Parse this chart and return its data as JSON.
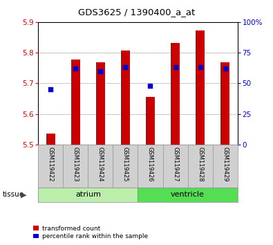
{
  "title": "GDS3625 / 1390400_a_at",
  "samples": [
    "GSM119422",
    "GSM119423",
    "GSM119424",
    "GSM119425",
    "GSM119426",
    "GSM119427",
    "GSM119428",
    "GSM119429"
  ],
  "bar_tops": [
    5.535,
    5.778,
    5.768,
    5.808,
    5.655,
    5.832,
    5.872,
    5.768
  ],
  "bar_bottom": 5.5,
  "percentile_ranks": [
    45,
    62,
    60,
    63,
    48,
    63,
    63,
    62
  ],
  "ylim_left": [
    5.5,
    5.9
  ],
  "ylim_right": [
    0,
    100
  ],
  "yticks_left": [
    5.5,
    5.6,
    5.7,
    5.8,
    5.9
  ],
  "yticks_right": [
    0,
    25,
    50,
    75,
    100
  ],
  "ytick_labels_right": [
    "0",
    "25",
    "50",
    "75",
    "100%"
  ],
  "bar_color": "#cc0000",
  "dot_color": "#0000cc",
  "grid_color": "#000000",
  "tissue_groups": [
    {
      "label": "atrium",
      "samples": [
        0,
        1,
        2,
        3
      ],
      "color": "#bbeeaa"
    },
    {
      "label": "ventricle",
      "samples": [
        4,
        5,
        6,
        7
      ],
      "color": "#55dd55"
    }
  ],
  "tissue_label": "tissue",
  "legend_items": [
    {
      "color": "#cc0000",
      "label": "transformed count"
    },
    {
      "color": "#0000cc",
      "label": "percentile rank within the sample"
    }
  ],
  "left_axis_color": "#cc0000",
  "right_axis_color": "#0000cc",
  "bar_width": 0.35,
  "dot_size": 18,
  "tick_fontsize": 7.5
}
